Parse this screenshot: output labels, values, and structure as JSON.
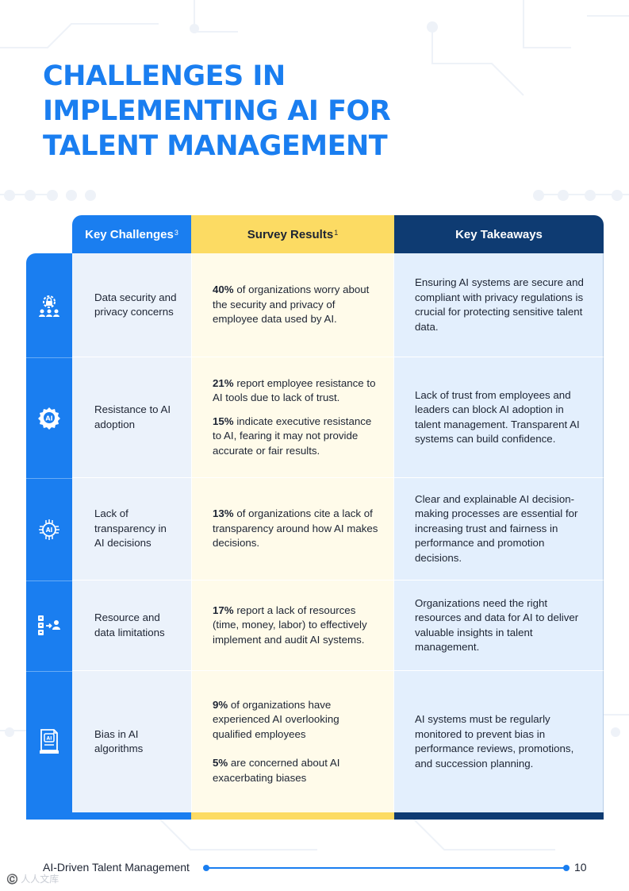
{
  "title_lines": [
    "CHALLENGES IN",
    "IMPLEMENTING AI FOR",
    "TALENT MANAGEMENT"
  ],
  "headers": {
    "challenges": {
      "label": "Key Challenges",
      "sup": "3"
    },
    "survey": {
      "label": "Survey Results",
      "sup": "1"
    },
    "takeaways": {
      "label": "Key Takeaways"
    }
  },
  "rows": [
    {
      "icon": "data-security-icon",
      "challenge": "Data security and privacy concerns",
      "survey": [
        {
          "bold": "40%",
          "text": " of organizations worry about the security and privacy of employee data used by AI."
        }
      ],
      "takeaway": "Ensuring AI systems are secure and compliant with privacy regulations is crucial for protecting sensitive talent data."
    },
    {
      "icon": "ai-gear-icon",
      "challenge": "Resistance to AI adoption",
      "survey": [
        {
          "bold": "21%",
          "text": " report employee resistance to AI tools due to lack of trust."
        },
        {
          "bold": "15%",
          "text": " indicate executive resistance to AI, fearing it may not provide accurate or fair results."
        }
      ],
      "takeaway": "Lack of trust from employees and leaders can block AI adoption in talent management. Transparent AI systems can build confidence."
    },
    {
      "icon": "ai-chip-icon",
      "challenge": "Lack of transparency in AI decisions",
      "survey": [
        {
          "bold": "13%",
          "text": " of organizations cite a lack of transparency around how AI makes decisions."
        }
      ],
      "takeaway": "Clear and explainable AI decision-making processes are essential for increasing trust and fairness in performance and promotion decisions."
    },
    {
      "icon": "resources-icon",
      "challenge": "Resource and data limitations",
      "survey": [
        {
          "bold": "17%",
          "text": " report a lack of resources (time, money, labor) to effectively implement and audit AI systems."
        }
      ],
      "takeaway": "Organizations need the right resources and data for AI to deliver valuable insights in talent management."
    },
    {
      "icon": "ai-document-icon",
      "challenge": "Bias in AI algorithms",
      "survey": [
        {
          "bold": "9%",
          "text": " of organizations have experienced AI overlooking qualified employees"
        },
        {
          "bold": "5%",
          "text": " are concerned about AI exacerbating biases"
        }
      ],
      "takeaway": "AI systems must be regularly monitored to prevent bias in performance reviews, promotions, and succession planning."
    }
  ],
  "footer": {
    "title": "AI-Driven Talent Management",
    "page": "10"
  },
  "watermark": "©️ 人人文库",
  "colors": {
    "blue": "#1a7ef0",
    "yellow": "#fcdb63",
    "navy": "#0e3b72"
  }
}
